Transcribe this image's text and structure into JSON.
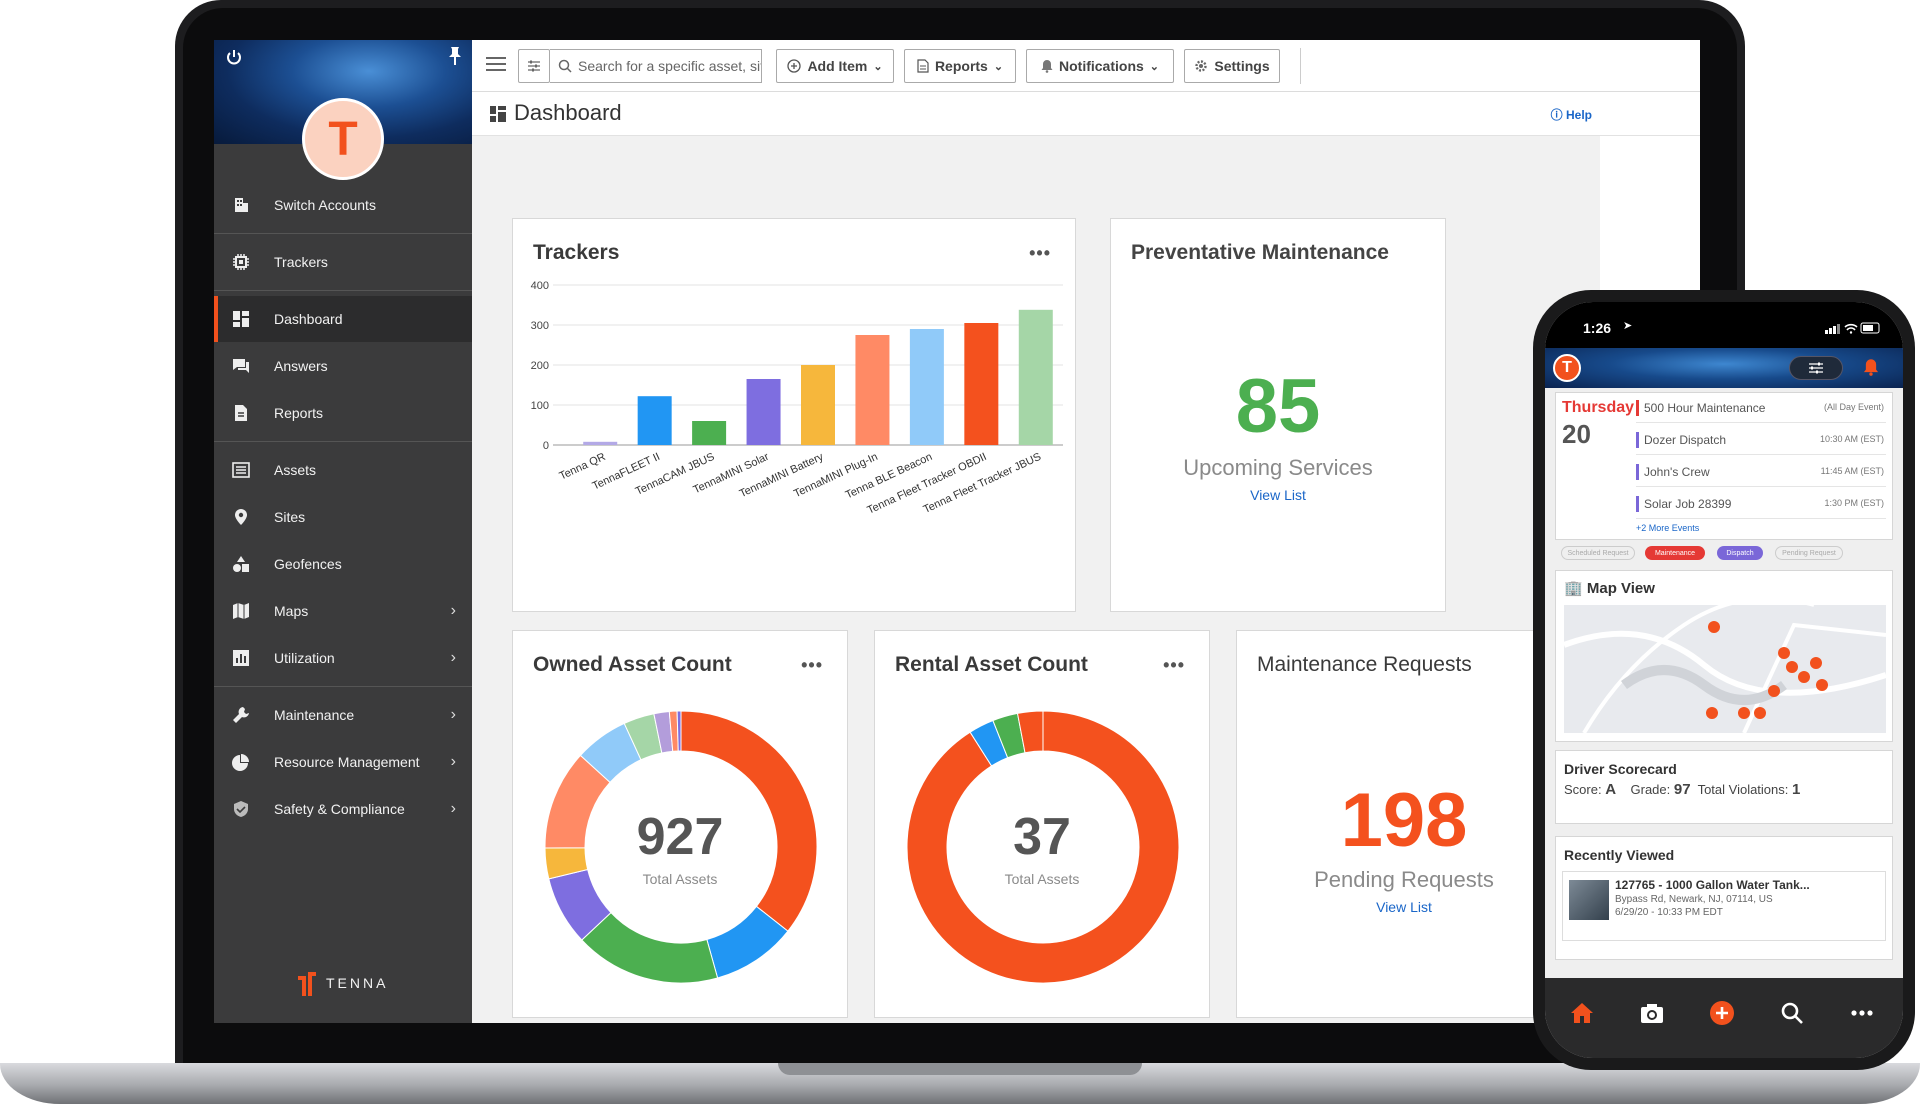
{
  "sidebar": {
    "avatar_letter": "T",
    "items": [
      {
        "label": "Switch Accounts"
      },
      {
        "label": "Trackers"
      },
      {
        "label": "Dashboard"
      },
      {
        "label": "Answers"
      },
      {
        "label": "Reports"
      },
      {
        "label": "Assets"
      },
      {
        "label": "Sites"
      },
      {
        "label": "Geofences"
      },
      {
        "label": "Maps"
      },
      {
        "label": "Utilization"
      },
      {
        "label": "Maintenance"
      },
      {
        "label": "Resource Management"
      },
      {
        "label": "Safety & Compliance"
      }
    ],
    "logo_text": "TENNA"
  },
  "topbar": {
    "search_placeholder": "Search for a specific asset, sit",
    "add_item": "Add Item",
    "reports": "Reports",
    "notifications": "Notifications",
    "settings": "Settings"
  },
  "page": {
    "title": "Dashboard",
    "help": "Help"
  },
  "cards": {
    "trackers": {
      "title": "Trackers",
      "menu": "•••"
    },
    "preventative": {
      "title": "Preventative Maintenance",
      "value": "85",
      "label": "Upcoming Services",
      "link": "View List"
    },
    "owned": {
      "title": "Owned Asset Count",
      "menu": "•••",
      "value": "927",
      "label": "Total Assets"
    },
    "rental": {
      "title": "Rental Asset Count",
      "menu": "•••",
      "value": "37",
      "label": "Total Assets"
    },
    "maintenance_requests": {
      "title": "Maintenance Requests",
      "value": "198",
      "label": "Pending Requests",
      "link": "View List"
    }
  },
  "chart_data": [
    {
      "type": "bar",
      "title": "Trackers",
      "categories": [
        "Tenna QR",
        "TennaFLEET II",
        "TennaCAM JBUS",
        "TennaMINI Solar",
        "TennaMINI Battery",
        "TennaMINI Plug-In",
        "Tenna BLE Beacon",
        "Tenna Fleet Tracker OBDII",
        "Tenna Fleet Tracker JBUS"
      ],
      "values": [
        8,
        122,
        60,
        165,
        200,
        275,
        290,
        305,
        338
      ],
      "colors": [
        "#b3a9e6",
        "#2196f3",
        "#4caf50",
        "#7e6ee0",
        "#f6b73c",
        "#ff8a65",
        "#90caf9",
        "#f4511e",
        "#a5d6a7"
      ],
      "ylim": [
        0,
        400
      ],
      "yticks": [
        0,
        100,
        200,
        300,
        400
      ]
    },
    {
      "type": "pie",
      "title": "Owned Asset Count",
      "values": [
        39,
        11,
        19,
        9,
        4,
        13,
        7,
        4,
        2,
        1,
        0.5
      ],
      "colors": [
        "#f4511e",
        "#2196f3",
        "#4caf50",
        "#7e6ee0",
        "#f6b73c",
        "#ff8a65",
        "#90caf9",
        "#a5d6a7",
        "#b39ddb",
        "#ff8a65",
        "#7e6ee0"
      ]
    },
    {
      "type": "pie",
      "title": "Rental Asset Count",
      "values": [
        91,
        3,
        3,
        3
      ],
      "colors": [
        "#f4511e",
        "#2196f3",
        "#4caf50",
        "#f4511e"
      ]
    }
  ],
  "phone": {
    "time": "1:26",
    "day_name": "Thursday",
    "day_num": "20",
    "events": [
      {
        "name": "500 Hour Maintenance",
        "time": "(All Day Event)",
        "color": "#e53935"
      },
      {
        "name": "Dozer Dispatch",
        "time": "10:30 AM (EST)",
        "color": "#7a67d8"
      },
      {
        "name": "John's Crew",
        "time": "11:45 AM (EST)",
        "color": "#7a67d8"
      },
      {
        "name": "Solar Job 28399",
        "time": "1:30 PM (EST)",
        "color": "#7a67d8"
      }
    ],
    "more_events": "+2 More Events",
    "filters": [
      "Scheduled Request",
      "Maintenance",
      "Dispatch",
      "Pending Request"
    ],
    "map_title": "Map View",
    "scorecard": {
      "title": "Driver Scorecard",
      "score_label": "Score:",
      "score": "A",
      "grade_label": "Grade:",
      "grade": "97",
      "violations_label": "Total Violations:",
      "violations": "1"
    },
    "recent": {
      "title": "Recently Viewed",
      "name": "127765 - 1000 Gallon Water Tank...",
      "address": "Bypass Rd, Newark, NJ, 07114, US",
      "date": "6/29/20 - 10:33 PM EDT"
    }
  }
}
